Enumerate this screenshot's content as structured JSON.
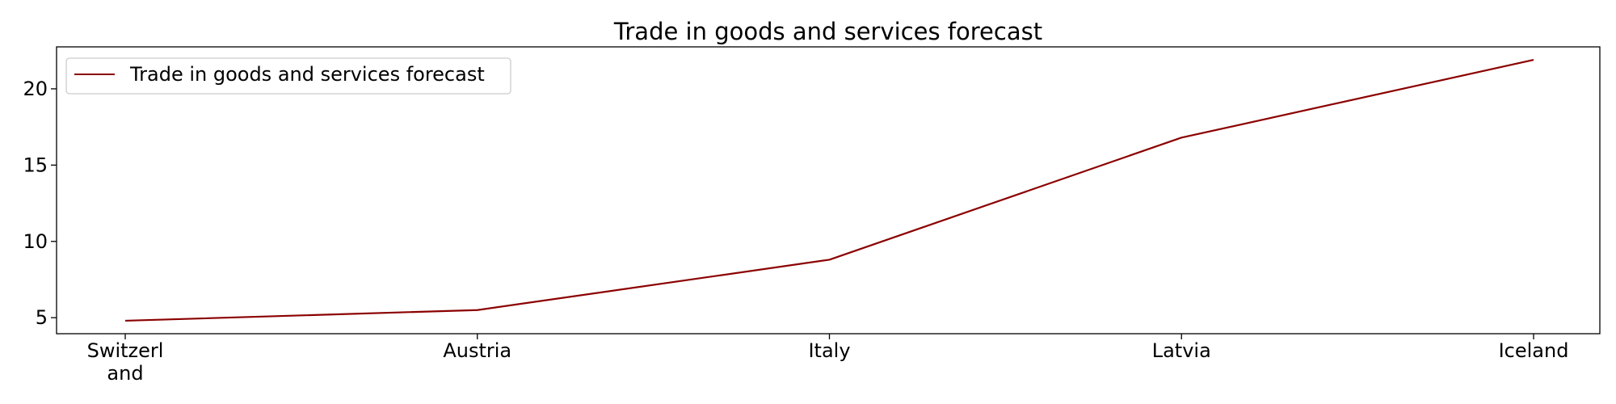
{
  "chart_data": {
    "type": "line",
    "title": "Trade in goods and services forecast",
    "xlabel": "",
    "ylabel": "",
    "categories": [
      "Switzerland",
      "Austria",
      "Italy",
      "Latvia",
      "Iceland"
    ],
    "category_tick_lines": [
      [
        "Switzerl",
        "and"
      ],
      [
        "Austria"
      ],
      [
        "Italy"
      ],
      [
        "Latvia"
      ],
      [
        "Iceland"
      ]
    ],
    "series": [
      {
        "name": "Trade in goods and services forecast",
        "values": [
          4.8,
          5.5,
          8.8,
          16.8,
          21.9
        ],
        "color": "#8b0000"
      }
    ],
    "yticks": [
      5,
      10,
      15,
      20
    ],
    "ylim": [
      3.95,
      22.75
    ],
    "grid": false,
    "legend": "top-left"
  }
}
